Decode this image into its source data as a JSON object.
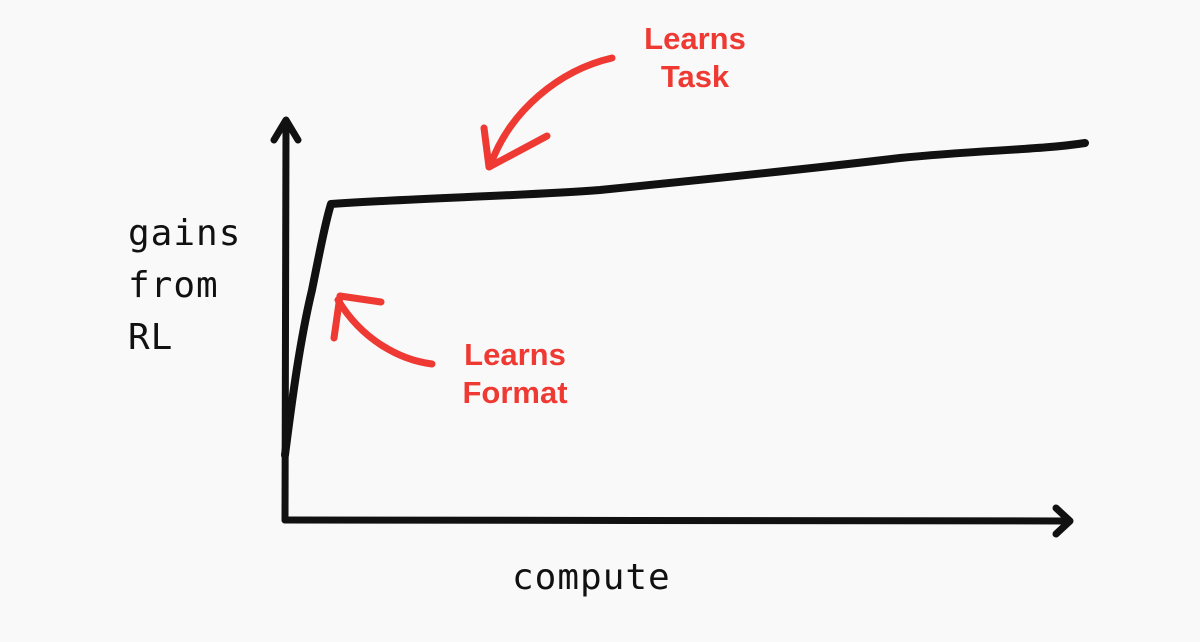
{
  "y_axis_label": "gains\nfrom\nRL",
  "x_axis_label": "compute",
  "annotations": {
    "learns_task": "Learns\nTask",
    "learns_format": "Learns\nFormat"
  },
  "colors": {
    "ink": "#111111",
    "annotation": "#ee3a32",
    "background": "#f9f9fa"
  }
}
